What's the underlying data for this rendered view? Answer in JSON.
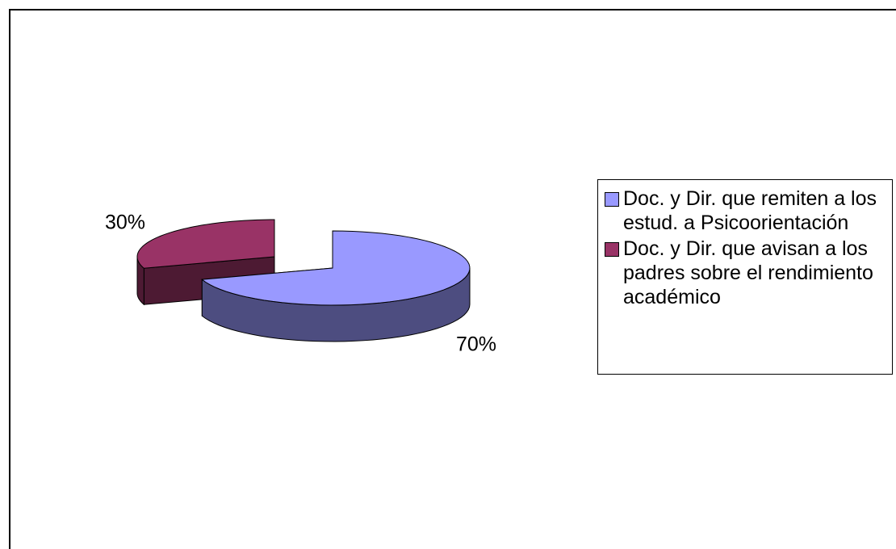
{
  "chart_data": {
    "type": "pie",
    "categories": [
      "Doc. y Dir. que remiten a los estud. a Psicoorientación",
      "Doc. y Dir. que avisan a los padres sobre el rendimiento académico"
    ],
    "values": [
      70,
      30
    ],
    "value_labels": [
      "70%",
      "30%"
    ],
    "colors": [
      "#9999ff",
      "#993366"
    ],
    "legend": "right"
  }
}
